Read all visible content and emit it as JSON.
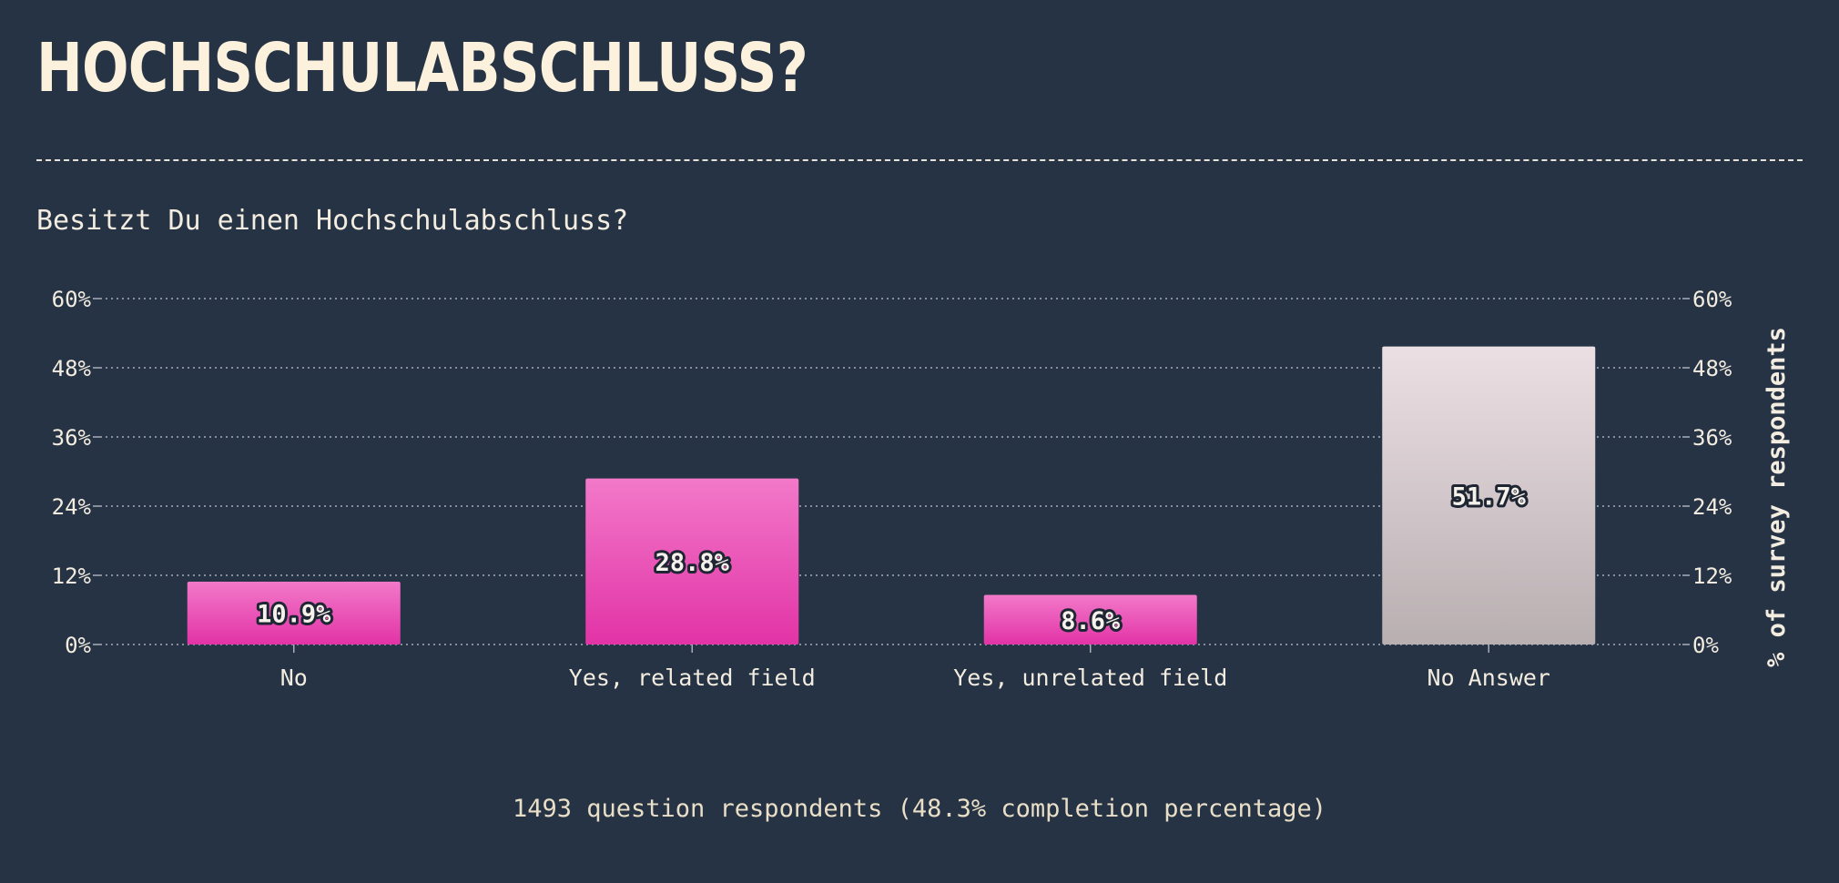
{
  "header": {
    "title": "HOCHSCHULABSCHLUSS?",
    "question": "Besitzt Du einen Hochschulabschluss?"
  },
  "footer": {
    "text": "1493 question respondents (48.3% completion percentage)"
  },
  "colors": {
    "background": "#263344",
    "pink_top": "#f279c9",
    "pink_bottom": "#e233a6",
    "grey_top": "#ecdfe4",
    "grey_bottom": "#b8afb1",
    "text": "#f3ece0"
  },
  "chart_data": {
    "type": "bar",
    "categories": [
      "No",
      "Yes, related field",
      "Yes, unrelated field",
      "No Answer"
    ],
    "values": [
      10.9,
      28.8,
      8.6,
      51.7
    ],
    "value_labels": [
      "10.9%",
      "28.8%",
      "8.6%",
      "51.7%"
    ],
    "bar_styles": [
      "pink",
      "pink",
      "pink",
      "grey"
    ],
    "ylim": [
      0,
      60
    ],
    "yticks": [
      0,
      12,
      24,
      36,
      48,
      60
    ],
    "ytick_labels": [
      "0%",
      "12%",
      "24%",
      "36%",
      "48%",
      "60%"
    ],
    "ylabel": "% of survey respondents",
    "grid": true
  }
}
